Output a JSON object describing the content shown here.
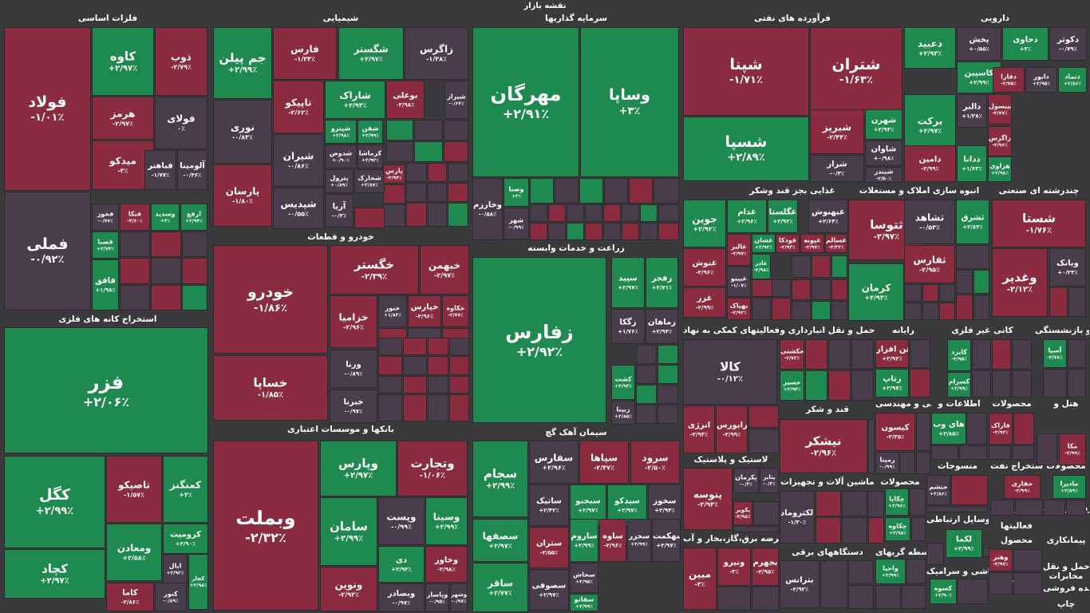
{
  "page_title": "نقشه بازار",
  "colors": {
    "pos": "#1e8a4f",
    "neg": "#8a2b40",
    "neu": "#4a3d4b",
    "bg": "#3a3a3c"
  },
  "sectors": [
    "فلزات اساسی",
    "شیمیایی",
    "سرمایه گذاریها",
    "فرآورده های نفتی",
    "دارویی",
    "خودرو و قطعات",
    "استخراج کانه های فلزی",
    "زراعت و خدمات وابسته",
    "غذایی بجز قند وشکر",
    "انبوه سازی املاک و مستغلات",
    "چندرشته ای صنعتی",
    "بانکها و موسسات اعتباری",
    "سیمان آهک گچ",
    "فعالیتهای کمکی به نهاد",
    "حمل و نقل انبارداری و",
    "رایانه",
    "کانی غیر فلزی",
    "بیمه و بازنشستگی",
    "قند و شکر",
    "فنی و مهندسی",
    "اطلاعات و",
    "محصولات",
    "هتل و",
    "لاستیک و پلاستیک",
    "ماشین آلات و تجهیزات",
    "محصولات",
    "منسوجات",
    "استخراج نفت",
    "محصولات",
    "عرضه برق،گاز،بخار و آب",
    "دستگاههای برقی",
    "واسطه گریهای",
    "وسایل ارتباطی",
    "سایر واسطه",
    "خرده فروشی",
    "کاشی و سرامیک",
    "فعالیتها",
    "پیمانکاری",
    "محصول",
    "استخراج",
    "حمل و نقل",
    "مخابرات",
    "عمده فروشی",
    "چاپ"
  ],
  "tiles": [
    {
      "s": "فولاد",
      "p": "-۱/۰۱٪",
      "c": "neg"
    },
    {
      "s": "کاوه",
      "p": "+۲/۹۷٪",
      "c": "pos"
    },
    {
      "s": "ذوب",
      "p": "-۲/۷۹٪",
      "c": "neg"
    },
    {
      "s": "هرمز",
      "p": "-۲/۹۷٪",
      "c": "neg"
    },
    {
      "s": "فولای",
      "p": "۰٪",
      "c": "neu"
    },
    {
      "s": "میدکو",
      "p": "-۳٪",
      "c": "neg"
    },
    {
      "s": "فباهنر",
      "p": "-۱/۷۷٪",
      "c": "neu"
    },
    {
      "s": "آلومینا",
      "p": "-۰/۴۶٪",
      "c": "neu"
    },
    {
      "s": "فملی",
      "p": "-۰/۹۲٪",
      "c": "neu"
    },
    {
      "s": "فخوز",
      "p": "-۰/۷۷٪",
      "c": "neu"
    },
    {
      "s": "فنکا",
      "p": "-۳/۶۰٪",
      "c": "neg"
    },
    {
      "s": "وسدید",
      "p": "+۳٪",
      "c": "pos"
    },
    {
      "s": "ارفع",
      "p": "+۲/۹۴٪",
      "c": "pos"
    },
    {
      "s": "فصبا",
      "p": "+۲/۷۴٪",
      "c": "pos"
    },
    {
      "s": "فافق",
      "p": "+۱/۹۸٪",
      "c": "pos"
    },
    {
      "s": "جم پیلن",
      "p": "+۲/۹۹٪",
      "c": "pos"
    },
    {
      "s": "فارس",
      "p": "-۱/۳۴٪",
      "c": "neg"
    },
    {
      "s": "شگستر",
      "p": "+۲/۹۷٪",
      "c": "pos"
    },
    {
      "s": "زاگرس",
      "p": "-۱/۳۸٪",
      "c": "neu"
    },
    {
      "s": "تاپیکو",
      "p": "-۲/۶۲٪",
      "c": "neg"
    },
    {
      "s": "شاراک",
      "p": "+۲/۹۳٪",
      "c": "pos"
    },
    {
      "s": "بوعلی",
      "p": "-۲/۹۸٪",
      "c": "neg"
    },
    {
      "s": "شیراز",
      "p": "-۰/۶۴٪",
      "c": "neu"
    },
    {
      "s": "نوری",
      "p": "-۰/۸۳٪",
      "c": "neu"
    },
    {
      "s": "شیران",
      "p": "-۰/۸۶٪",
      "c": "neu"
    },
    {
      "s": "شپترو",
      "p": "+۲/۹۸٪",
      "c": "pos"
    },
    {
      "s": "شفن",
      "p": "+۲/۹۹٪",
      "c": "pos"
    },
    {
      "s": "شدوص",
      "p": "+۰/۹۰٪",
      "c": "neu"
    },
    {
      "s": "کرماشا",
      "p": "+۲/۹۲٪",
      "c": "neu"
    },
    {
      "s": "پترول",
      "p": "+۰/۸۹٪",
      "c": "neu"
    },
    {
      "s": "شخارک",
      "p": "+۲/۸۷٪",
      "c": "neu"
    },
    {
      "s": "پارسان",
      "p": "-۱/۸۰٪",
      "c": "neg"
    },
    {
      "s": "شپدیس",
      "p": "-۰/۵۵٪",
      "c": "neu"
    },
    {
      "s": "آریا",
      "p": "-۰/۳٪",
      "c": "neu"
    },
    {
      "s": "پارس",
      "p": "-۲/۹۴٪",
      "c": "neg"
    },
    {
      "s": "مهرگان",
      "p": "+۲/۹۱٪",
      "c": "pos"
    },
    {
      "s": "وساپا",
      "p": "+۳٪",
      "c": "pos"
    },
    {
      "s": "وخارزم",
      "p": "-۰/۵۸٪",
      "c": "neu"
    },
    {
      "s": "وصنا",
      "p": "+۳٪",
      "c": "pos"
    },
    {
      "s": "شهر",
      "p": "-۰/۹۹٪",
      "c": "neu"
    },
    {
      "s": "شپنا",
      "p": "-۱/۷۱٪",
      "c": "neg"
    },
    {
      "s": "شتران",
      "p": "-۱/۶۳٪",
      "c": "neg"
    },
    {
      "s": "شسپا",
      "p": "+۲/۸۹٪",
      "c": "pos"
    },
    {
      "s": "شبریز",
      "p": "-۲/۴۴٪",
      "c": "neg"
    },
    {
      "s": "شهرن",
      "p": "+۲/۹۳٪",
      "c": "pos"
    },
    {
      "s": "شاوان",
      "p": "+۰/۹۸٪",
      "c": "neu"
    },
    {
      "s": "شراز",
      "p": "-۰/۳٪",
      "c": "neu"
    },
    {
      "s": "شبندر",
      "p": "-۲/۵۰٪",
      "c": "neu"
    },
    {
      "s": "دعبید",
      "p": "+۲/۹۳٪",
      "c": "pos"
    },
    {
      "s": "پخش",
      "p": "+۰/۵۵٪",
      "c": "neu"
    },
    {
      "s": "دحاوی",
      "p": "+۳٪",
      "c": "pos"
    },
    {
      "s": "دکوثر",
      "p": "-۰/۷۹٪",
      "c": "neu"
    },
    {
      "s": "کاسپین",
      "p": "+۲/۹۹٪",
      "c": "pos"
    },
    {
      "s": "دفارا",
      "p": "-۲/۷۵٪",
      "c": "neg"
    },
    {
      "s": "دابور",
      "p": "+۲/۹۵٪",
      "c": "neu"
    },
    {
      "s": "دتماد",
      "p": "+۲/۸۶٪",
      "c": "pos"
    },
    {
      "s": "برکت",
      "p": "+۲/۹۷٪",
      "c": "pos"
    },
    {
      "s": "دالبر",
      "p": "+۱/۲۸٪",
      "c": "neu"
    },
    {
      "s": "تیبسول",
      "p": "-۲/۷۷٪",
      "c": "neg"
    },
    {
      "s": "زاگرس",
      "p": "-۲/۹۶٪",
      "c": "neg"
    },
    {
      "s": "دامین",
      "p": "-۲/۹۹٪",
      "c": "neg"
    },
    {
      "s": "ددانا",
      "p": "+۱/۶۳٪",
      "c": "pos"
    },
    {
      "s": "هراوی",
      "p": "+۲/۹۸٪",
      "c": "pos"
    },
    {
      "s": "خودرو",
      "p": "-۱/۸۶٪",
      "c": "neg"
    },
    {
      "s": "خگستر",
      "p": "-۲/۳۹٪",
      "c": "neg"
    },
    {
      "s": "خبهمن",
      "p": "-۲/۹۷٪",
      "c": "neg"
    },
    {
      "s": "خزامیا",
      "p": "-۲/۹۶٪",
      "c": "neg"
    },
    {
      "s": "خنور",
      "p": "+۱/۸۳٪",
      "c": "neu"
    },
    {
      "s": "خپارس",
      "p": "-۲/۹۶٪",
      "c": "neg"
    },
    {
      "s": "خکاوه",
      "p": "-۲/۷۷٪",
      "c": "neg"
    },
    {
      "s": "خساپا",
      "p": "-۱/۸۵٪",
      "c": "neg"
    },
    {
      "s": "ورنا",
      "p": "-۰/۸۹٪",
      "c": "neu"
    },
    {
      "s": "خبرنا",
      "p": "-۰/۹۷٪",
      "c": "neu"
    },
    {
      "s": "فزر",
      "p": "+۲/۰۶٪",
      "c": "pos"
    },
    {
      "s": "کگل",
      "p": "+۲/۹۹٪",
      "c": "pos"
    },
    {
      "s": "تاصیکو",
      "p": "-۱/۵۷٪",
      "c": "neg"
    },
    {
      "s": "کمنگنز",
      "p": "+۳٪",
      "c": "pos"
    },
    {
      "s": "کرومیت",
      "p": "+۲/۹۰٪",
      "c": "pos"
    },
    {
      "s": "کچاد",
      "p": "+۲/۹۷٪",
      "c": "pos"
    },
    {
      "s": "ومعادن",
      "p": "+۲/۵۸٪",
      "c": "pos"
    },
    {
      "s": "ابال",
      "p": "+۲/۹۲٪",
      "c": "neu"
    },
    {
      "s": "کاما",
      "p": "-۲/۸۶٪",
      "c": "neg"
    },
    {
      "s": "کنور",
      "p": "-۰/۸۹٪",
      "c": "neu"
    },
    {
      "s": "کجار",
      "p": "+۲/۹۸٪",
      "c": "pos"
    },
    {
      "s": "زفارس",
      "p": "+۲/۹۲٪",
      "c": "pos"
    },
    {
      "s": "سپید",
      "p": "+۲/۹۷٪",
      "c": "pos"
    },
    {
      "s": "زفجر",
      "p": "+۲/۷۱٪",
      "c": "pos"
    },
    {
      "s": "زگکا",
      "p": "+۱/۷۶٪",
      "c": "neu"
    },
    {
      "s": "زماهان",
      "p": "+۲/۹۴٪",
      "c": "neu"
    },
    {
      "s": "کشت",
      "p": "+۲/۹۳٪",
      "c": "pos"
    },
    {
      "s": "زبینا",
      "p": "+۲/۸۵٪",
      "c": "neu"
    },
    {
      "s": "وبملت",
      "p": "-۲/۳۲٪",
      "c": "neg"
    },
    {
      "s": "وپارس",
      "p": "+۲/۹۷٪",
      "c": "pos"
    },
    {
      "s": "وتجارت",
      "p": "-۱/۰۶٪",
      "c": "neg"
    },
    {
      "s": "سامان",
      "p": "+۲/۹۹٪",
      "c": "pos"
    },
    {
      "s": "وپست",
      "p": "-۰/۹۹٪",
      "c": "neu"
    },
    {
      "s": "وسینا",
      "p": "+۲/۹۹٪",
      "c": "pos"
    },
    {
      "s": "دی",
      "p": "+۲/۹۳٪",
      "c": "pos"
    },
    {
      "s": "وخاور",
      "p": "-۲/۹۸٪",
      "c": "neg"
    },
    {
      "s": "ونوین",
      "p": "-۲/۹۳٪",
      "c": "neg"
    },
    {
      "s": "وبصادر",
      "p": "-۰/۹۷٪",
      "c": "neu"
    },
    {
      "s": "وپاسار",
      "p": "-۰/۹۵٪",
      "c": "neu"
    },
    {
      "s": "وشهر",
      "p": "-۰/۹۷٪",
      "c": "neu"
    },
    {
      "s": "سجام",
      "p": "+۲/۹۹٪",
      "c": "pos"
    },
    {
      "s": "سفارس",
      "p": "+۲/۹۶٪",
      "c": "neu"
    },
    {
      "s": "سپاها",
      "p": "-۲/۴۷٪",
      "c": "neg"
    },
    {
      "s": "سرود",
      "p": "-۲/۵۰٪",
      "c": "neg"
    },
    {
      "s": "ساتیک",
      "p": "+۲/۴۲٪",
      "c": "neu"
    },
    {
      "s": "سبجنو",
      "p": "+۲/۹۷٪",
      "c": "pos"
    },
    {
      "s": "سیدکو",
      "p": "+۲/۹۷٪",
      "c": "pos"
    },
    {
      "s": "سخوز",
      "p": "+۲/۹۴٪",
      "c": "neu"
    },
    {
      "s": "سصفها",
      "p": "+۲/۹۷٪",
      "c": "pos"
    },
    {
      "s": "ستران",
      "p": "-۲/۵۵٪",
      "c": "neg"
    },
    {
      "s": "ساروم",
      "p": "+۲/۹۹٪",
      "c": "pos"
    },
    {
      "s": "ساوه",
      "p": "-۲/۹۶٪",
      "c": "neg"
    },
    {
      "s": "سخزر",
      "p": "+۲/۹۹٪",
      "c": "neu"
    },
    {
      "s": "سهکمت",
      "p": "+۲/۹۷٪",
      "c": "neu"
    },
    {
      "s": "سخاش",
      "p": "+۲/۹۵٪",
      "c": "neu"
    },
    {
      "s": "ساقر",
      "p": "+۲/۷۷٪",
      "c": "pos"
    },
    {
      "s": "سصوفی",
      "p": "+۲/۹۷٪",
      "c": "neu"
    },
    {
      "s": "سفانو",
      "p": "+۲/۹۹٪",
      "c": "pos"
    },
    {
      "s": "جوین",
      "p": "+۲/۹۲٪",
      "c": "pos"
    },
    {
      "s": "غدام",
      "p": "+۲/۹۶٪",
      "c": "pos"
    },
    {
      "s": "غگلستا",
      "p": "+۲/۹۲٪",
      "c": "pos"
    },
    {
      "s": "غبهنوش",
      "p": "+۲/۶۴٪",
      "c": "neu"
    },
    {
      "s": "غالبر",
      "p": "-۲/۹۷٪",
      "c": "neg"
    },
    {
      "s": "غشان",
      "p": "+۲/۹۲٪",
      "c": "pos"
    },
    {
      "s": "فودکا",
      "p": "-۲/۹۳٪",
      "c": "neg"
    },
    {
      "s": "غپونه",
      "p": "-۲/۹۷٪",
      "c": "neg"
    },
    {
      "s": "غسالم",
      "p": "-۲/۳۲٪",
      "c": "neg"
    },
    {
      "s": "غنوش",
      "p": "-۲/۹۶٪",
      "c": "neg"
    },
    {
      "s": "غاذر",
      "p": "-۲/۹۸٪",
      "c": "pos"
    },
    {
      "s": "غبینو",
      "p": "-۱/۰۷٪",
      "c": "neu"
    },
    {
      "s": "غزر",
      "p": "-۲/۹۹٪",
      "c": "neg"
    },
    {
      "s": "بهپاک",
      "p": "-۲/۹۲٪",
      "c": "neg"
    },
    {
      "s": "ثتوسا",
      "p": "-۲/۹۷٪",
      "c": "neg"
    },
    {
      "s": "ثشاهد",
      "p": "-۰/۵۳٪",
      "c": "neu"
    },
    {
      "s": "ثشرق",
      "p": "+۲/۸۴٪",
      "c": "pos"
    },
    {
      "s": "ثفارس",
      "p": "-۲/۹۵٪",
      "c": "neg"
    },
    {
      "s": "کرمان",
      "p": "+۲/۹۴٪",
      "c": "pos"
    },
    {
      "s": "شستا",
      "p": "-۱/۷۶٪",
      "c": "neg"
    },
    {
      "s": "وبانک",
      "p": "+۰/۲۳٪",
      "c": "neu"
    },
    {
      "s": "وغدیر",
      "p": "-۲/۱۲٪",
      "c": "neg"
    },
    {
      "s": "کالا",
      "p": "-۰/۱۲٪",
      "c": "neu"
    },
    {
      "s": "انرژی",
      "p": "-۲/۹۳٪",
      "c": "neg"
    },
    {
      "s": "فرابورس",
      "p": "-۲/۹۹٪",
      "c": "neg"
    },
    {
      "s": "حکشتی",
      "p": "-۲/۷۳٪",
      "c": "neg"
    },
    {
      "s": "حسیر",
      "p": "+۲/۹۴٪",
      "c": "pos"
    },
    {
      "s": "فن افزار",
      "p": "+۲/۹۲٪",
      "c": "neg"
    },
    {
      "s": "رتاپ",
      "p": "+۲/۹۷٪",
      "c": "pos"
    },
    {
      "s": "کایزد",
      "p": "-۲/۹۵٪",
      "c": "pos"
    },
    {
      "s": "کسرام",
      "p": "+۲/۹۹٪",
      "c": "pos"
    },
    {
      "s": "آسیا",
      "p": "-۲/۷۸٪",
      "c": "pos"
    },
    {
      "s": "نیشکر",
      "p": "-۲/۹۶٪",
      "c": "neg"
    },
    {
      "s": "کیسون",
      "p": "-۲/۳۵٪",
      "c": "neg"
    },
    {
      "s": "رمپنا",
      "p": "-۰/۹۹٪",
      "c": "neu"
    },
    {
      "s": "های وب",
      "p": "+۲/۸۵٪",
      "c": "pos"
    },
    {
      "s": "فاراک",
      "p": "-۲/۹۲٪",
      "c": "neg"
    },
    {
      "s": "مکا",
      "p": "-۲/۹۹٪",
      "c": "neg"
    },
    {
      "s": "پتوسه",
      "p": "-۲/۹۳٪",
      "c": "neg"
    },
    {
      "s": "پکرمان",
      "p": "-۰/۳٪",
      "c": "neu"
    },
    {
      "s": "پتایر",
      "p": "-۰/۳٪",
      "c": "neu"
    },
    {
      "s": "پکویر",
      "p": "-۲/۹۸٪",
      "c": "neg"
    },
    {
      "s": "الکتروماد",
      "p": "-۱/۳۰٪",
      "c": "neu"
    },
    {
      "s": "چکاپا",
      "p": "+۲/۹۶٪",
      "c": "pos"
    },
    {
      "s": "چکاوه",
      "p": "+۲/۹۸٪",
      "c": "pos"
    },
    {
      "s": "حتشم",
      "p": "+۲/۸۶٪",
      "c": "neu"
    },
    {
      "s": "حفاری",
      "p": "-۲/۹۹٪",
      "c": "neg"
    },
    {
      "s": "مادیرا",
      "p": "+۲/۸۹٪",
      "c": "pos"
    },
    {
      "s": "مبین",
      "p": "-۳٪",
      "c": "neg"
    },
    {
      "s": "ونیرو",
      "p": "-۳٪",
      "c": "neg"
    },
    {
      "s": "بجهرم",
      "p": "-۲/۹۵٪",
      "c": "neg"
    },
    {
      "s": "بترانس",
      "p": "-۲/۹۲٪",
      "c": "neu"
    },
    {
      "s": "لکما",
      "p": "+۲/۹۹٪",
      "c": "pos"
    },
    {
      "s": "کسوه",
      "p": "+۲/۹۰٪",
      "c": "pos"
    },
    {
      "s": "وهنر",
      "p": "-۲/۹۷٪",
      "c": "neg"
    },
    {
      "s": "واحیا",
      "p": "+۲/۹۹٪",
      "c": "pos"
    }
  ]
}
